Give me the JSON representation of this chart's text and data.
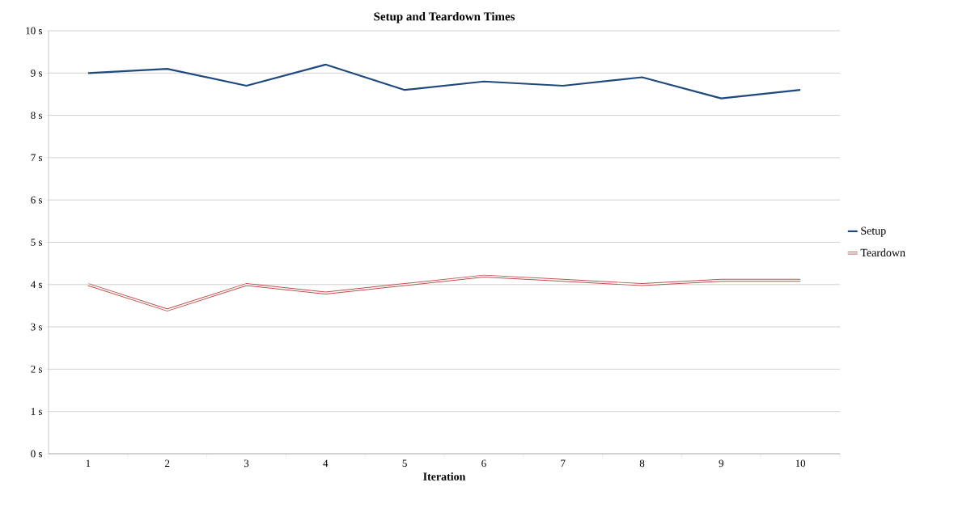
{
  "chart_data": {
    "type": "line",
    "title": "Setup and Teardown Times",
    "xlabel": "Iteration",
    "categories": [
      "1",
      "2",
      "3",
      "4",
      "5",
      "6",
      "7",
      "8",
      "9",
      "10"
    ],
    "series": [
      {
        "name": "Setup",
        "color": "#1f497d",
        "values": [
          9.0,
          9.1,
          8.7,
          9.2,
          8.6,
          8.8,
          8.7,
          8.9,
          8.4,
          8.6
        ]
      },
      {
        "name": "Teardown",
        "color": "#c0504d",
        "values": [
          4.0,
          3.4,
          4.0,
          3.8,
          4.0,
          4.2,
          4.1,
          4.0,
          4.1,
          4.1
        ]
      }
    ],
    "ylim": [
      0,
      10
    ],
    "yticks": [
      {
        "value": 0,
        "label": "0 s"
      },
      {
        "value": 1,
        "label": "1 s"
      },
      {
        "value": 2,
        "label": "2 s"
      },
      {
        "value": 3,
        "label": "3 s"
      },
      {
        "value": 4,
        "label": "4 s"
      },
      {
        "value": 5,
        "label": "5 s"
      },
      {
        "value": 6,
        "label": "6 s"
      },
      {
        "value": 7,
        "label": "7 s"
      },
      {
        "value": 8,
        "label": "8 s"
      },
      {
        "value": 9,
        "label": "9 s"
      },
      {
        "value": 10,
        "label": "10 s"
      }
    ],
    "grid": "y",
    "legend": "right",
    "marker": "none",
    "line_style": "solid"
  }
}
